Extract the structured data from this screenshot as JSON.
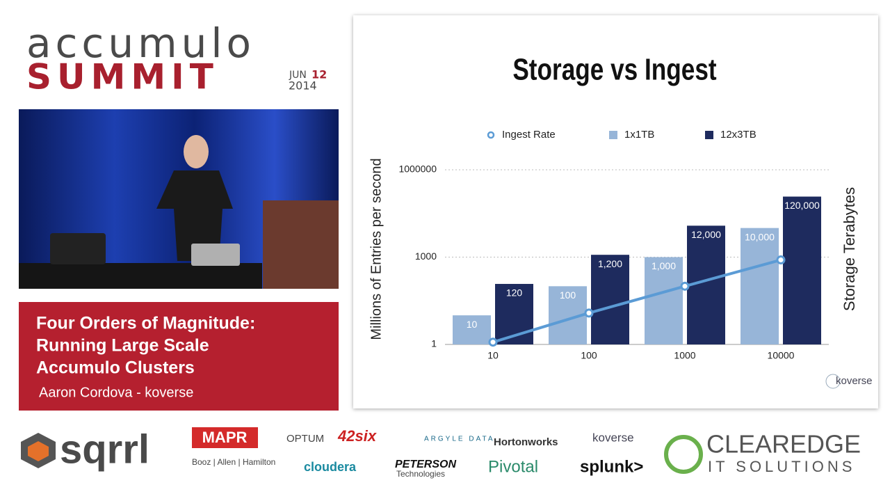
{
  "header": {
    "line1": "accumulo",
    "line2": "SUMMIT",
    "month": "JUN",
    "day": "12",
    "year": "2014"
  },
  "talk": {
    "title_lines": [
      "Four Orders of Magnitude:",
      "Running Large Scale",
      "Accumulo Clusters"
    ],
    "speaker": "Aaron Cordova - koverse"
  },
  "chart_data": {
    "type": "bar",
    "title": "Storage vs Ingest",
    "y_label": "Millions of Entries per second",
    "y2_label": "Storage Terabytes",
    "logo": "koverse",
    "categories": [
      "10",
      "100",
      "1000",
      "10000"
    ],
    "series": [
      {
        "name": "Ingest Rate",
        "type": "line",
        "color": "#5b9bd5",
        "values": [
          1.2,
          12,
          100,
          800
        ]
      },
      {
        "name": "1x1TB",
        "color": "#97b5d8",
        "values": [
          10,
          100,
          1000,
          10000
        ],
        "value_labels": [
          "10",
          "100",
          "1,000",
          "10,000"
        ]
      },
      {
        "name": "12x3TB",
        "color": "#1e2b5e",
        "values": [
          120,
          1200,
          12000,
          120000
        ],
        "value_labels": [
          "120",
          "1,200",
          "12,000",
          "120,000"
        ]
      }
    ],
    "log_scale": true,
    "ylim": [
      1,
      1000000
    ],
    "yticks": [
      1,
      1000,
      1000000
    ],
    "grid": true,
    "legend": "top"
  },
  "sponsors": [
    "sqrrl",
    "MAPR",
    "OPTUM",
    "42six",
    "ARGYLE DATA",
    "Hortonworks",
    "koverse",
    "Booz | Allen | Hamilton",
    "cloudera",
    "PETERSON",
    "Technologies",
    "Pivotal",
    "splunk>",
    "CLEAREDGE",
    "IT SOLUTIONS"
  ]
}
